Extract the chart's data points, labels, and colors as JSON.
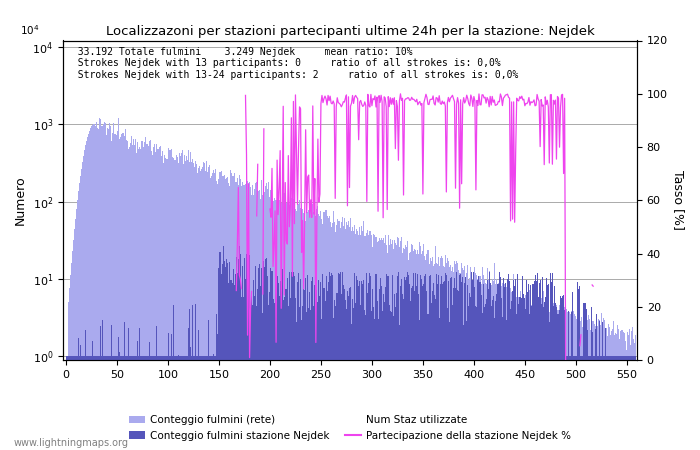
{
  "title": "Localizzazoni per stazioni partecipanti ultime 24h per la stazione: Nejdek",
  "ylabel_left": "Numero",
  "ylabel_right": "Tasso [%]",
  "annotation_lines": [
    "33.192 Totale fulmini    3.249 Nejdek     mean ratio: 10%",
    "Strokes Nejdek with 13 participants: 0     ratio of all strokes is: 0,0%",
    "Strokes Nejdek with 13-24 participants: 2     ratio of all strokes is: 0,0%"
  ],
  "legend_labels": [
    "Conteggio fulmini (rete)",
    "Conteggio fulmini stazione Nejdek",
    "Num Staz utilizzate",
    "Partecipazione della stazione Nejdek %"
  ],
  "bar_color_network": "#aaaaee",
  "bar_color_station": "#5555bb",
  "line_color_participation": "#ee44ee",
  "background_color": "#ffffff",
  "grid_color": "#aaaaaa",
  "xticks": [
    0,
    50,
    100,
    150,
    200,
    250,
    300,
    350,
    400,
    450,
    500,
    550
  ],
  "yticks_right": [
    0,
    20,
    40,
    60,
    80,
    100,
    120
  ],
  "watermark": "www.lightningmaps.org",
  "n_bars": 560
}
